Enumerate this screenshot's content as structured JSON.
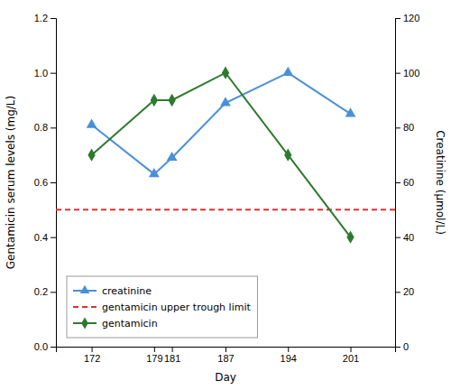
{
  "chart_data": {
    "type": "line",
    "xlabel": "Day",
    "ylabel": "Gentamicin serum levels (mg/L)",
    "y2label": "Creatinine (μmol/L)",
    "x": [
      172,
      179,
      181,
      187,
      194,
      201
    ],
    "xlim": [
      168,
      206
    ],
    "xticks": [
      172,
      179,
      181,
      187,
      194,
      201
    ],
    "ylim": [
      0,
      1.2
    ],
    "yticks": [
      {
        "value": 0,
        "label": "0.0"
      },
      0.2,
      0.4,
      0.6,
      0.8,
      {
        "value": 1.0,
        "label": "1.0"
      },
      1.2
    ],
    "y2lim": [
      0,
      120
    ],
    "y2ticks": [
      0,
      20,
      40,
      60,
      80,
      100,
      120
    ],
    "grid": false,
    "legend": "lower left",
    "series": [
      {
        "name": "creatinine",
        "color": "#4a90d9",
        "marker": "triangle",
        "line_style": "solid",
        "values": [
          0.81,
          0.63,
          0.69,
          0.89,
          1.0,
          0.85
        ]
      },
      {
        "name": "gentamicin upper trough limit",
        "color": "#e03030",
        "marker": "none",
        "line_style": "dashed",
        "x": [
          168,
          206
        ],
        "values": [
          0.5,
          0.5
        ]
      },
      {
        "name": "gentamicin",
        "color": "#2d7a2d",
        "marker": "diamond",
        "line_style": "solid",
        "values": [
          0.7,
          0.9,
          0.9,
          1.0,
          0.7,
          0.4
        ]
      }
    ]
  }
}
